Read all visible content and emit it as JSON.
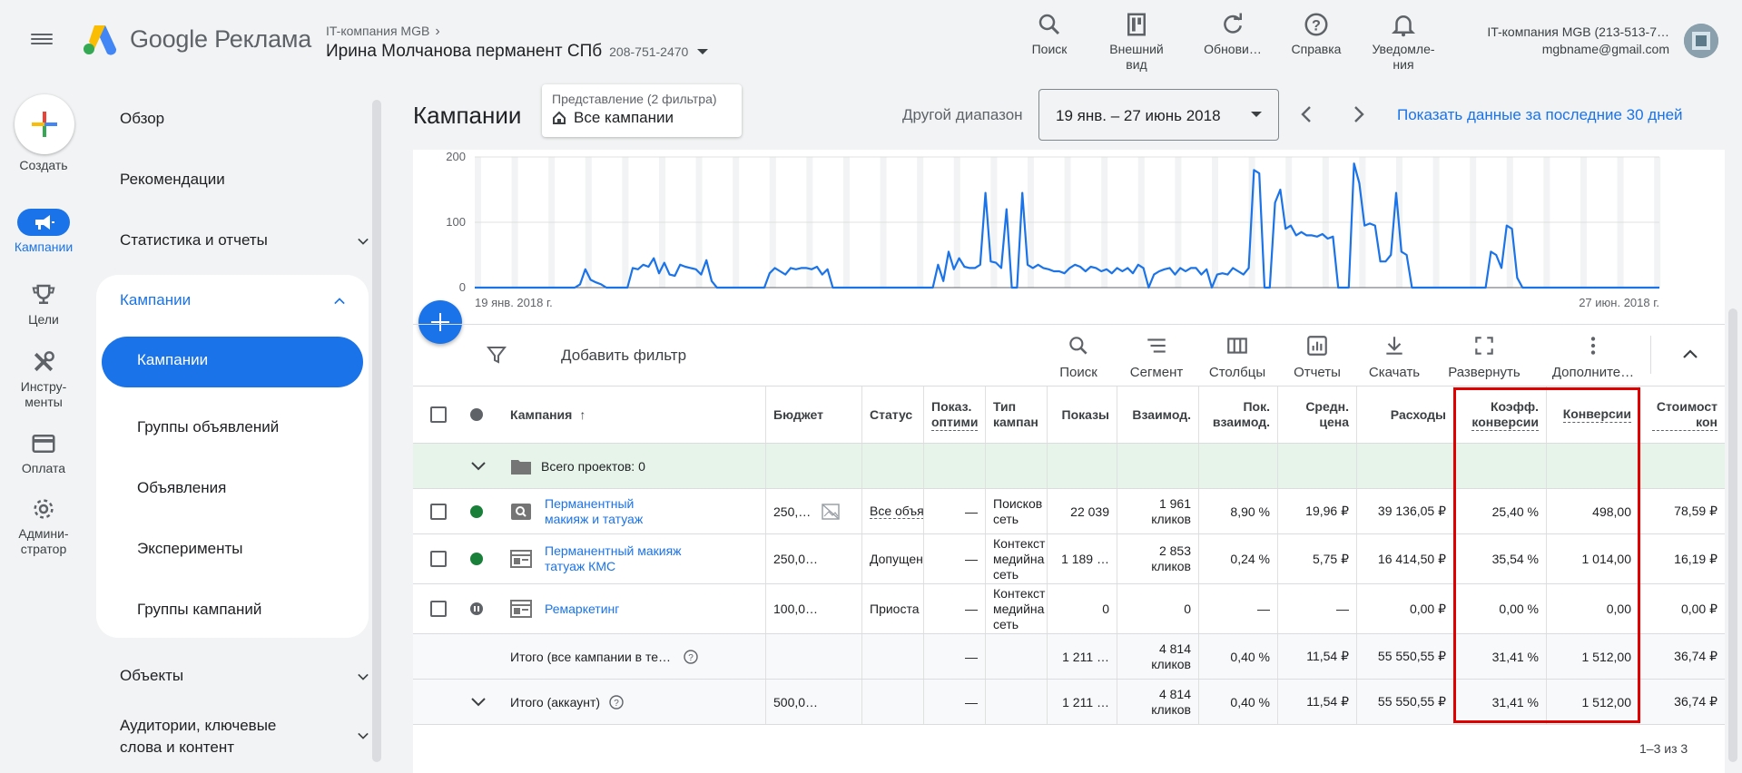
{
  "header": {
    "brand": "Google Реклама",
    "parent_account": "IT-компания MGB",
    "account_name": "Ирина Молчанова перманент СПб",
    "account_id": "208-751-2470",
    "tools": [
      {
        "icon": "search-icon",
        "label": "Поиск"
      },
      {
        "icon": "appearance-icon",
        "label": "Внешний вид"
      },
      {
        "icon": "refresh-icon",
        "label": "Обнови…"
      },
      {
        "icon": "help-icon",
        "label": "Справка"
      },
      {
        "icon": "bell-icon",
        "label": "Уведомле-ния"
      }
    ],
    "user_account": "IT-компания MGB (213-513-7…",
    "user_email": "mgbname@gmail.com"
  },
  "rail": {
    "create": "Создать",
    "items": [
      {
        "icon": "megaphone-icon",
        "label": "Кампании"
      },
      {
        "icon": "trophy-icon",
        "label": "Цели"
      },
      {
        "icon": "tools-icon",
        "label": "Инстру-менты"
      },
      {
        "icon": "credit-card-icon",
        "label": "Оплата"
      },
      {
        "icon": "gear-icon",
        "label": "Админи-стратор"
      }
    ]
  },
  "nav": {
    "overview": "Обзор",
    "recommendations": "Рекомендации",
    "stats": "Статистика и отчеты",
    "campaigns_group": "Кампании",
    "campaigns": "Кампании",
    "ad_groups": "Группы объявлений",
    "ads": "Объявления",
    "experiments": "Эксперименты",
    "campaign_groups": "Группы кампаний",
    "objects": "Объекты",
    "audiences": "Аудитории, ключевые слова и контент"
  },
  "main": {
    "title": "Кампании",
    "view_label": "Представление (2 фильтра)",
    "view_value": "Все кампании",
    "range_label": "Другой диапазон",
    "date_range": "19 янв. – 27 июнь 2018",
    "last30": "Показать данные за последние 30 дней",
    "add_filter": "Добавить фильтр",
    "toolbar": [
      {
        "icon": "search-icon",
        "label": "Поиск"
      },
      {
        "icon": "segment-icon",
        "label": "Сегмент"
      },
      {
        "icon": "columns-icon",
        "label": "Столбцы"
      },
      {
        "icon": "reports-icon",
        "label": "Отчеты"
      },
      {
        "icon": "download-icon",
        "label": "Скачать"
      },
      {
        "icon": "expand-icon",
        "label": "Развернуть"
      },
      {
        "icon": "more-icon",
        "label": "Дополните…"
      }
    ],
    "pager": "1–3 из 3"
  },
  "chart_data": {
    "type": "line",
    "y_ticks": [
      "200",
      "100",
      "0"
    ],
    "ylim": [
      0,
      200
    ],
    "x_start_label": "19 янв. 2018 г.",
    "x_end_label": "27 июн. 2018 г.",
    "color": "#1a73e8",
    "values": [
      0,
      0,
      0,
      0,
      0,
      0,
      0,
      0,
      0,
      0,
      0,
      0,
      0,
      0,
      0,
      0,
      0,
      0,
      0,
      0,
      5,
      28,
      12,
      8,
      5,
      0,
      0,
      0,
      0,
      0,
      30,
      28,
      35,
      32,
      45,
      22,
      38,
      20,
      18,
      35,
      32,
      30,
      28,
      20,
      42,
      10,
      0,
      0,
      0,
      0,
      0,
      0,
      0,
      0,
      0,
      0,
      22,
      30,
      25,
      20,
      30,
      28,
      30,
      30,
      28,
      32,
      20,
      28,
      0,
      0,
      0,
      0,
      0,
      0,
      0,
      0,
      0,
      0,
      0,
      0,
      0,
      0,
      0,
      0,
      0,
      0,
      0,
      0,
      35,
      10,
      55,
      28,
      45,
      32,
      30,
      30,
      35,
      145,
      40,
      38,
      30,
      120,
      0,
      0,
      145,
      35,
      30,
      35,
      30,
      28,
      25,
      25,
      22,
      30,
      35,
      32,
      25,
      32,
      30,
      25,
      28,
      22,
      30,
      25,
      30,
      22,
      35,
      30,
      0,
      20,
      25,
      28,
      30,
      20,
      30,
      25,
      30,
      30,
      20,
      28,
      0,
      20,
      22,
      20,
      30,
      25,
      20,
      30,
      180,
      175,
      0,
      0,
      130,
      150,
      90,
      95,
      80,
      85,
      80,
      80,
      78,
      82,
      75,
      78,
      0,
      0,
      0,
      190,
      160,
      95,
      98,
      95,
      40,
      40,
      50,
      145,
      55,
      50,
      0,
      0,
      0,
      0,
      0,
      0,
      0,
      0,
      0,
      0,
      0,
      0,
      0,
      0,
      0,
      55,
      50,
      30,
      95,
      90,
      15,
      0,
      0,
      0,
      0,
      0,
      0,
      0,
      0,
      0,
      0,
      0,
      0,
      0,
      0,
      0,
      0,
      0,
      0,
      0,
      0,
      0,
      0,
      0,
      0,
      0,
      0,
      0
    ]
  },
  "table": {
    "headers": {
      "campaign": "Кампания",
      "budget": "Бюджет",
      "status": "Статус",
      "opt": "Показ. оптими",
      "type": "Тип кампан",
      "impr": "Показы",
      "interactions": "Взаимод.",
      "ir": "Пок. взаимод.",
      "avg_cost": "Средн. цена",
      "cost": "Расходы",
      "conv_rate": "Коэфф. конверсии",
      "conversions": "Конверсии",
      "cost_conv": "Стоимост кон"
    },
    "group_row": "Всего проектов: 0",
    "rows": [
      {
        "name": "Перманентный макияж и татуаж",
        "icon": "search-campaign-icon",
        "budget": "250,…",
        "status": "Все объя",
        "opt": "—",
        "type": "Поисков сеть",
        "impr": "22 039",
        "inter": "1 961",
        "inter_unit": "кликов",
        "ir": "8,90 %",
        "avg": "19,96 ₽",
        "cost": "39 136,05 ₽",
        "cr": "25,40 %",
        "conv": "498,00",
        "cpc": "78,59 ₽",
        "status_color": "#188038"
      },
      {
        "name": "Перманентный макияж татуаж КМС",
        "icon": "display-campaign-icon",
        "budget": "250,0…",
        "status": "Допущен",
        "opt": "—",
        "type": "Контекст медийна сеть",
        "impr": "1 189 …",
        "inter": "2 853",
        "inter_unit": "кликов",
        "ir": "0,24 %",
        "avg": "5,75 ₽",
        "cost": "16 414,50 ₽",
        "cr": "35,54 %",
        "conv": "1 014,00",
        "cpc": "16,19 ₽",
        "status_color": "#188038"
      },
      {
        "name": "Ремаркетинг",
        "icon": "display-campaign-icon",
        "budget": "100,0…",
        "status": "Приоста",
        "opt": "—",
        "type": "Контекст медийна сеть",
        "impr": "0",
        "inter": "0",
        "inter_unit": "",
        "ir": "—",
        "avg": "—",
        "cost": "0,00 ₽",
        "cr": "0,00 %",
        "conv": "0,00",
        "cpc": "0,00 ₽",
        "status_color": "#5f6368"
      }
    ],
    "total_filtered": {
      "label": "Итого (все кампании в те…",
      "opt": "—",
      "impr": "1 211 …",
      "inter": "4 814",
      "inter_unit": "кликов",
      "ir": "0,40 %",
      "avg": "11,54 ₽",
      "cost": "55 550,55 ₽",
      "cr": "31,41 %",
      "conv": "1 512,00",
      "cpc": "36,74 ₽"
    },
    "total_account": {
      "label": "Итого (аккаунт)",
      "budget": "500,0…",
      "opt": "—",
      "impr": "1 211 …",
      "inter": "4 814",
      "inter_unit": "кликов",
      "ir": "0,40 %",
      "avg": "11,54 ₽",
      "cost": "55 550,55 ₽",
      "cr": "31,41 %",
      "conv": "1 512,00",
      "cpc": "36,74 ₽"
    }
  }
}
